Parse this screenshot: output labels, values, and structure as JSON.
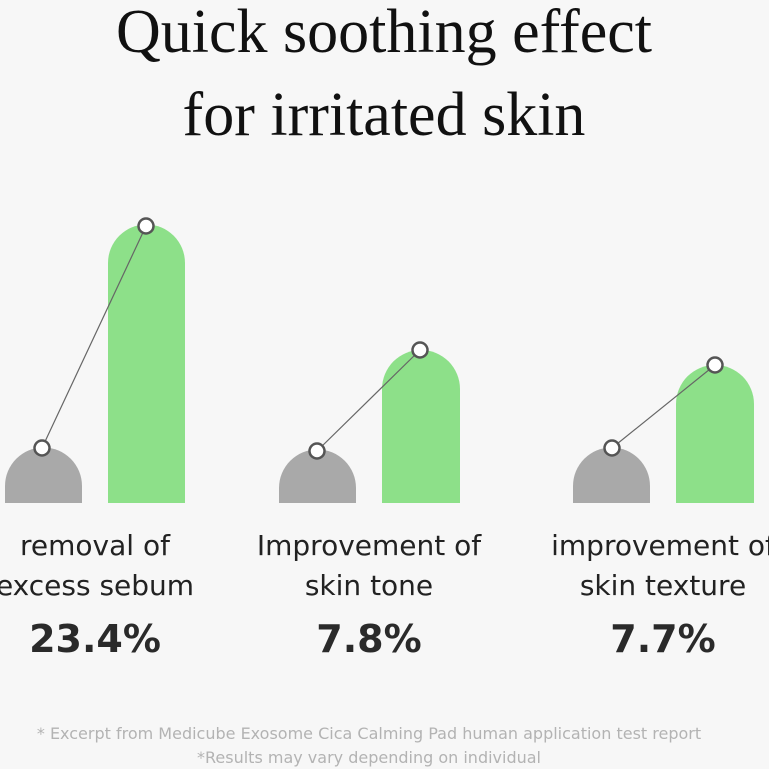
{
  "header": {
    "title_lines": [
      "Quick soothing effect",
      "for irritated skin"
    ]
  },
  "groups": [
    {
      "label_lines": [
        "removal of",
        "excess sebum"
      ],
      "value_label": "23.4%"
    },
    {
      "label_lines": [
        "Improvement of",
        "skin tone"
      ],
      "value_label": "7.8%"
    },
    {
      "label_lines": [
        "improvement of",
        "skin texture"
      ],
      "value_label": "7.7%"
    }
  ],
  "footnotes": [
    "* Excerpt from Medicube Exosome Cica Calming Pad human application test report",
    "*Results may vary depending on individual"
  ]
}
